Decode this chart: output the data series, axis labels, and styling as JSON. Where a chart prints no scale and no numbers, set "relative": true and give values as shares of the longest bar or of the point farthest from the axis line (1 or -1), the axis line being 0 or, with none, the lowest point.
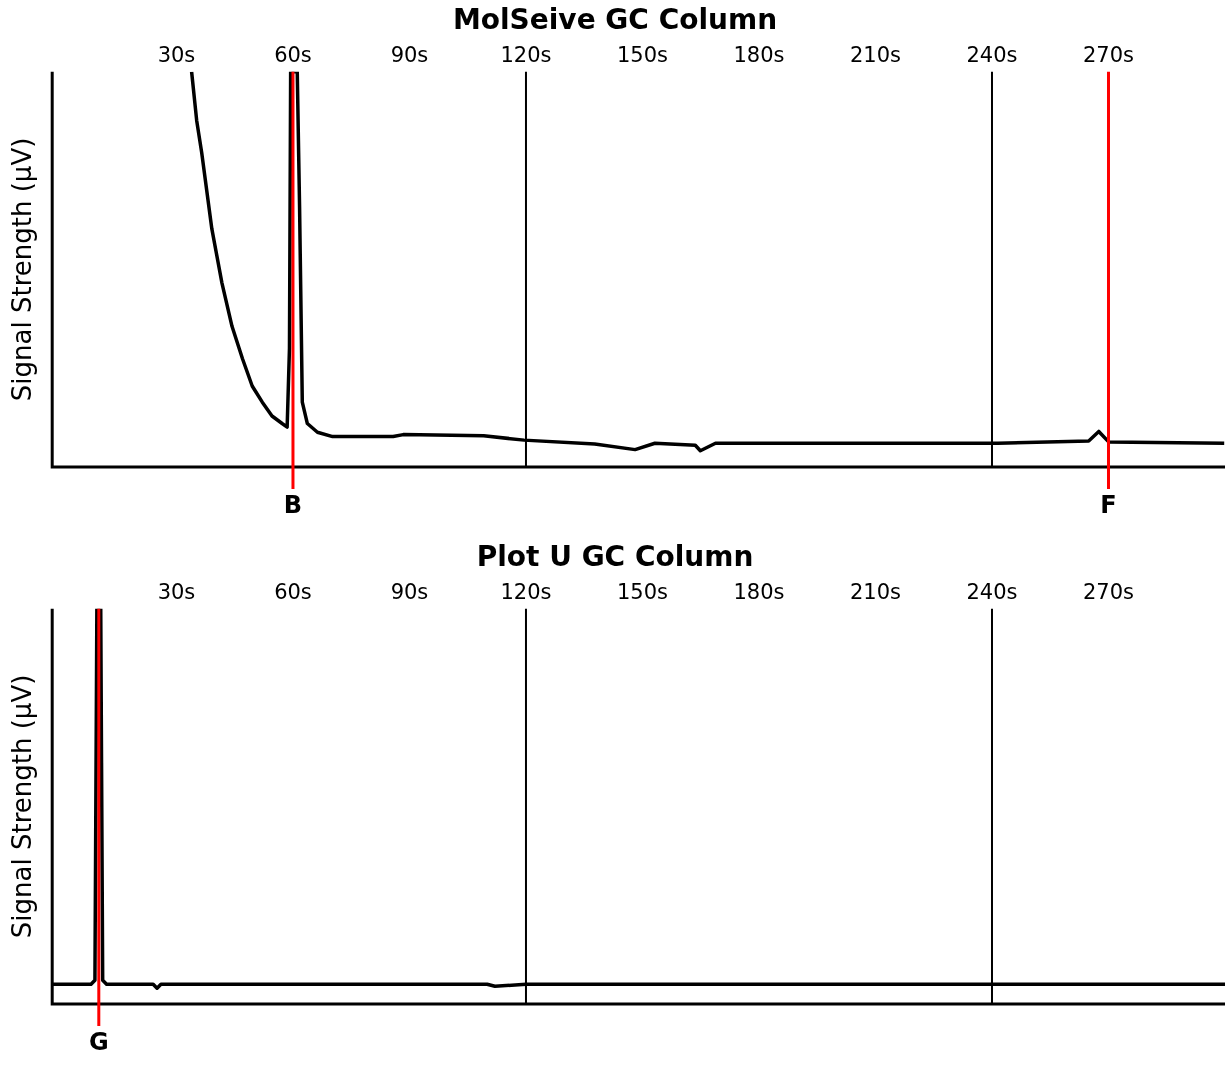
{
  "chart_data": [
    {
      "type": "line",
      "title": "MolSeive GC Column",
      "ylabel": "Signal Strength (µV)",
      "relative": true,
      "tick_labels": "x",
      "grid": false,
      "legend": false,
      "marker": "none",
      "line_style": "solid",
      "xlim": [
        -2,
        300
      ],
      "xticks": [
        {
          "value": 30,
          "label": "30s"
        },
        {
          "value": 60,
          "label": "60s"
        },
        {
          "value": 90,
          "label": "90s"
        },
        {
          "value": 120,
          "label": "120s"
        },
        {
          "value": 150,
          "label": "150s"
        },
        {
          "value": 180,
          "label": "180s"
        },
        {
          "value": 210,
          "label": "210s"
        },
        {
          "value": 240,
          "label": "240s"
        },
        {
          "value": 270,
          "label": "270s"
        }
      ],
      "series": [
        {
          "color": "#000000",
          "x": [
            33.9,
            35.2,
            36.5,
            39.1,
            41.7,
            44.3,
            47.0,
            49.5,
            52.1,
            54.6,
            57.2,
            58.5,
            59.1,
            59.4,
            61.1,
            61.7,
            62.4,
            63.7,
            66.3,
            70.2,
            85.8,
            88.4,
            109.1,
            119.5,
            137.7,
            148.1,
            153.2,
            163.6,
            164.9,
            168.8,
            241.5,
            264.9,
            267.5,
            270.1,
            299.8
          ],
          "values": [
            1.0,
            0.877,
            0.795,
            0.603,
            0.466,
            0.356,
            0.274,
            0.205,
            0.164,
            0.129,
            0.11,
            0.101,
            0.301,
            1.0,
            1.0,
            0.658,
            0.164,
            0.11,
            0.088,
            0.077,
            0.077,
            0.082,
            0.079,
            0.068,
            0.058,
            0.044,
            0.06,
            0.055,
            0.041,
            0.06,
            0.06,
            0.066,
            0.09,
            0.063,
            0.06
          ]
        }
      ],
      "ref_lines": [
        {
          "axis": "x",
          "value": 120,
          "color": "#000000"
        },
        {
          "axis": "x",
          "value": 240,
          "color": "#000000"
        },
        {
          "axis": "x",
          "value": 60,
          "label": "B",
          "color": "#ff0000"
        },
        {
          "axis": "x",
          "value": 270,
          "label": "F",
          "color": "#ff0000"
        }
      ]
    },
    {
      "type": "line",
      "title": "Plot U GC Column",
      "ylabel": "Signal Strength (µV)",
      "relative": true,
      "tick_labels": "x",
      "grid": false,
      "legend": false,
      "marker": "none",
      "line_style": "solid",
      "xlim": [
        -2,
        300
      ],
      "xticks": [
        {
          "value": 30,
          "label": "30s"
        },
        {
          "value": 60,
          "label": "60s"
        },
        {
          "value": 90,
          "label": "90s"
        },
        {
          "value": 120,
          "label": "120s"
        },
        {
          "value": 150,
          "label": "150s"
        },
        {
          "value": 180,
          "label": "180s"
        },
        {
          "value": 210,
          "label": "210s"
        },
        {
          "value": 240,
          "label": "240s"
        },
        {
          "value": 270,
          "label": "270s"
        }
      ],
      "series": [
        {
          "color": "#000000",
          "x": [
            -2,
            8,
            9,
            9.5,
            10.5,
            11,
            12,
            24,
            25,
            26,
            110,
            112,
            120,
            300
          ],
          "values": [
            0.05,
            0.05,
            0.06,
            1.0,
            1.0,
            0.06,
            0.05,
            0.05,
            0.04,
            0.05,
            0.05,
            0.045,
            0.05,
            0.05
          ]
        }
      ],
      "ref_lines": [
        {
          "axis": "x",
          "value": 120,
          "color": "#000000"
        },
        {
          "axis": "x",
          "value": 240,
          "color": "#000000"
        },
        {
          "axis": "x",
          "value": 10,
          "label": "G",
          "color": "#ff0000"
        }
      ]
    }
  ]
}
